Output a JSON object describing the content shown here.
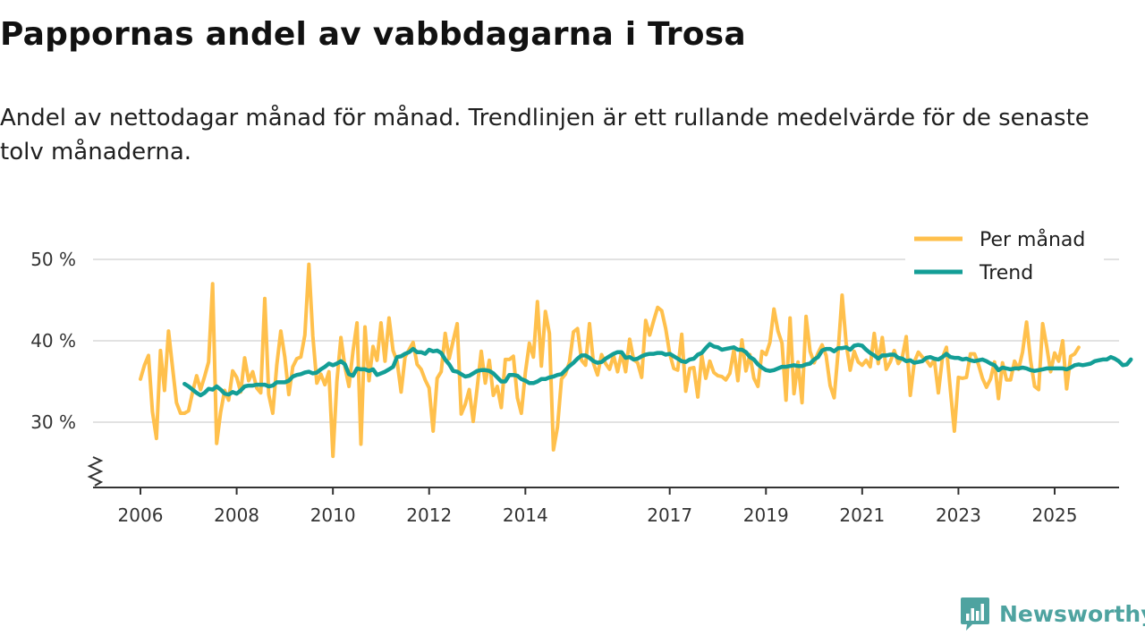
{
  "header": {
    "title": "Pappornas andel av vabbdagarna i Trosa",
    "subtitle": "Andel av nettodagar månad för månad. Trendlinjen är ett rullande medelvärde för de senaste tolv månaderna."
  },
  "brand": {
    "name": "Newsworthy",
    "icon": "newsworthy-logo-icon",
    "color": "#4ea3a0"
  },
  "chart_data": {
    "type": "line",
    "ylim": [
      22,
      50
    ],
    "xlim": [
      2006,
      2025.5
    ],
    "y_ticks": [
      {
        "value": 30,
        "label": "30 %"
      },
      {
        "value": 40,
        "label": "40 %"
      },
      {
        "value": 50,
        "label": "50 %"
      }
    ],
    "x_ticks": [
      {
        "value": 2006,
        "label": "2006"
      },
      {
        "value": 2008,
        "label": "2008"
      },
      {
        "value": 2010,
        "label": "2010"
      },
      {
        "value": 2012,
        "label": "2012"
      },
      {
        "value": 2014,
        "label": "2014"
      },
      {
        "value": 2017,
        "label": "2017"
      },
      {
        "value": 2019,
        "label": "2019"
      },
      {
        "value": 2021,
        "label": "2021"
      },
      {
        "value": 2023,
        "label": "2023"
      },
      {
        "value": 2025,
        "label": "2025"
      }
    ],
    "legend": {
      "position": "top-right"
    },
    "series": [
      {
        "name": "Per månad",
        "color": "#ffc04c",
        "start": 2006.0,
        "step": 0.0833333,
        "values": [
          35.3,
          37.0,
          38.2,
          31.3,
          28.0,
          38.8,
          33.9,
          41.2,
          36.7,
          32.4,
          31.1,
          31.1,
          31.4,
          33.7,
          35.7,
          34.0,
          35.6,
          37.4,
          47.0,
          27.4,
          31.2,
          33.9,
          32.7,
          36.3,
          35.5,
          33.7,
          37.9,
          35.1,
          36.2,
          34.2,
          33.6,
          45.2,
          33.4,
          31.1,
          37.0,
          41.2,
          38.0,
          33.4,
          36.8,
          37.8,
          38.0,
          40.7,
          49.4,
          40.6,
          34.8,
          35.9,
          34.6,
          36.2,
          25.8,
          35.0,
          40.4,
          36.8,
          34.4,
          38.7,
          42.2,
          27.3,
          41.7,
          35.1,
          39.3,
          37.6,
          42.2,
          37.5,
          42.8,
          38.8,
          37.5,
          33.7,
          38.0,
          38.9,
          39.8,
          37.1,
          36.5,
          35.2,
          34.2,
          28.9,
          35.4,
          36.2,
          40.9,
          37.8,
          40.0,
          42.1,
          31.0,
          32.2,
          34.0,
          30.1,
          34.3,
          38.7,
          34.8,
          37.6,
          33.3,
          34.4,
          31.8,
          37.7,
          37.7,
          38.1,
          33.0,
          31.1,
          36.1,
          39.7,
          38.0,
          44.8,
          36.9,
          43.6,
          40.9,
          26.6,
          29.4,
          35.3,
          35.9,
          37.4,
          41.1,
          41.5,
          37.6,
          37.0,
          42.1,
          37.2,
          35.8,
          38.3,
          37.2,
          36.5,
          38.2,
          36.2,
          38.5,
          36.2,
          40.2,
          37.7,
          37.3,
          35.5,
          42.5,
          40.7,
          42.5,
          44.1,
          43.7,
          41.5,
          38.4,
          36.6,
          36.4,
          40.8,
          33.8,
          36.6,
          36.7,
          33.1,
          38.2,
          35.4,
          37.5,
          36.1,
          35.7,
          35.6,
          35.2,
          36.0,
          38.9,
          35.1,
          40.1,
          36.3,
          38.3,
          35.4,
          34.4,
          38.7,
          38.3,
          39.8,
          43.9,
          41.2,
          39.7,
          32.7,
          42.8,
          33.5,
          37.4,
          32.4,
          43.0,
          38.7,
          37.3,
          38.5,
          39.5,
          38.2,
          34.5,
          33.0,
          38.6,
          45.6,
          39.7,
          36.4,
          38.7,
          37.4,
          37.0,
          37.6,
          36.8,
          40.9,
          37.2,
          40.4,
          36.5,
          37.4,
          38.8,
          37.2,
          38.0,
          40.5,
          33.3,
          37.4,
          38.6,
          38.0,
          37.6,
          36.9,
          37.7,
          33.6,
          37.9,
          39.2,
          33.9,
          28.9,
          35.5,
          35.4,
          35.5,
          38.4,
          38.4,
          37.1,
          35.4,
          34.3,
          35.3,
          37.4,
          32.9,
          37.3,
          35.2,
          35.2,
          37.5,
          36.5,
          38.6,
          42.3,
          37.6,
          34.4,
          34.0,
          42.1,
          39.4,
          36.2,
          38.5,
          37.5,
          40.0,
          34.1,
          38.1,
          38.4,
          39.2
        ]
      },
      {
        "name": "Trend",
        "color": "#139e96",
        "start": 2006.9167,
        "step": 0.0833333,
        "values": [
          34.7,
          34.4,
          34.0,
          33.6,
          33.3,
          33.6,
          34.1,
          34.0,
          34.4,
          34.0,
          33.5,
          33.4,
          33.7,
          33.5,
          33.9,
          34.4,
          34.5,
          34.5,
          34.6,
          34.6,
          34.6,
          34.4,
          34.5,
          34.9,
          34.9,
          34.9,
          35.1,
          35.6,
          35.8,
          35.9,
          36.1,
          36.2,
          36.0,
          36.1,
          36.5,
          36.8,
          37.2,
          37.0,
          37.2,
          37.5,
          37.1,
          35.9,
          35.7,
          36.6,
          36.5,
          36.5,
          36.3,
          36.5,
          35.8,
          36.0,
          36.2,
          36.5,
          36.8,
          38.0,
          38.1,
          38.4,
          38.6,
          39.0,
          38.6,
          38.6,
          38.4,
          38.9,
          38.7,
          38.8,
          38.5,
          37.7,
          37.1,
          36.3,
          36.2,
          35.9,
          35.6,
          35.7,
          36.0,
          36.3,
          36.4,
          36.4,
          36.3,
          36.0,
          35.5,
          35.0,
          35.0,
          35.8,
          35.8,
          35.7,
          35.3,
          35.1,
          34.8,
          34.8,
          35.0,
          35.3,
          35.3,
          35.5,
          35.6,
          35.8,
          35.9,
          36.4,
          36.9,
          37.3,
          37.8,
          38.2,
          38.2,
          37.9,
          37.5,
          37.3,
          37.4,
          37.8,
          38.1,
          38.4,
          38.6,
          38.6,
          37.9,
          38.0,
          37.7,
          37.8,
          38.1,
          38.3,
          38.4,
          38.4,
          38.5,
          38.5,
          38.3,
          38.4,
          38.1,
          37.8,
          37.5,
          37.4,
          37.7,
          37.8,
          38.3,
          38.5,
          39.1,
          39.6,
          39.3,
          39.2,
          38.9,
          39.0,
          39.1,
          39.2,
          38.9,
          38.9,
          38.6,
          38.0,
          37.7,
          37.1,
          36.7,
          36.4,
          36.3,
          36.4,
          36.6,
          36.8,
          36.8,
          36.9,
          37.0,
          36.9,
          36.9,
          37.1,
          37.2,
          37.7,
          38.0,
          38.8,
          39.0,
          39.0,
          38.7,
          39.1,
          39.1,
          39.2,
          38.9,
          39.4,
          39.5,
          39.4,
          38.9,
          38.5,
          38.2,
          37.8,
          38.2,
          38.2,
          38.3,
          38.3,
          37.9,
          37.8,
          37.5,
          37.6,
          37.3,
          37.4,
          37.5,
          37.9,
          38.0,
          37.8,
          37.7,
          38.0,
          38.4,
          38.0,
          37.9,
          37.9,
          37.7,
          37.8,
          37.6,
          37.5,
          37.6,
          37.7,
          37.5,
          37.2,
          37.0,
          36.4,
          36.7,
          36.6,
          36.5,
          36.6,
          36.6,
          36.7,
          36.6,
          36.4,
          36.3,
          36.4,
          36.5,
          36.6,
          36.6,
          36.6,
          36.6,
          36.6,
          36.5,
          36.7,
          37.0,
          37.1,
          37.0,
          37.1,
          37.2,
          37.5,
          37.6,
          37.7,
          37.7,
          38.0,
          37.8,
          37.5,
          37.0,
          37.1,
          37.7
        ]
      }
    ]
  }
}
